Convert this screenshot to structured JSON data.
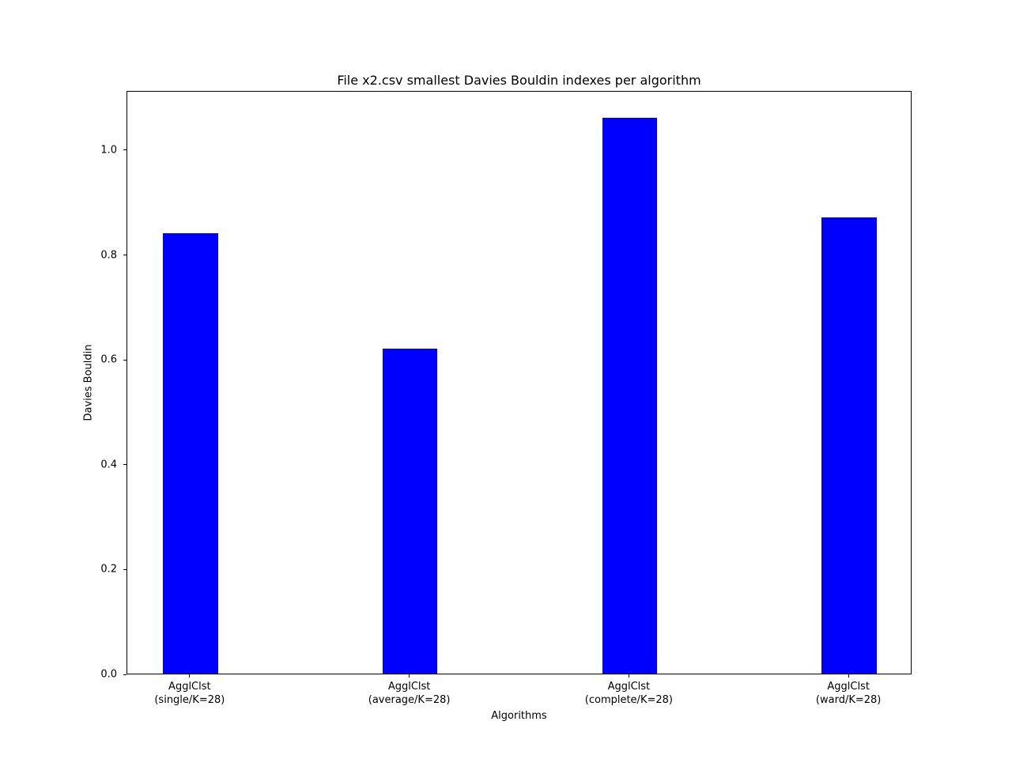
{
  "chart_data": {
    "type": "bar",
    "title": "File x2.csv smallest Davies Bouldin indexes per algorithm",
    "xlabel": "Algorithms",
    "ylabel": "Davies Bouldin",
    "categories": [
      [
        "AgglClst",
        "(single/K=28)"
      ],
      [
        "AgglClst",
        "(average/K=28)"
      ],
      [
        "AgglClst",
        "(complete/K=28)"
      ],
      [
        "AgglClst",
        "(ward/K=28)"
      ]
    ],
    "values": [
      0.84,
      0.62,
      1.06,
      0.87
    ],
    "yticks": [
      "0.0",
      "0.2",
      "0.4",
      "0.6",
      "0.8",
      "1.0"
    ],
    "ylim": [
      0,
      1.113
    ],
    "xlim": [
      -0.2875,
      3.2875
    ],
    "bar_width": 0.25,
    "bar_color": "#0000ff",
    "background": "#ffffff",
    "grid": false,
    "legend_position": "none"
  }
}
